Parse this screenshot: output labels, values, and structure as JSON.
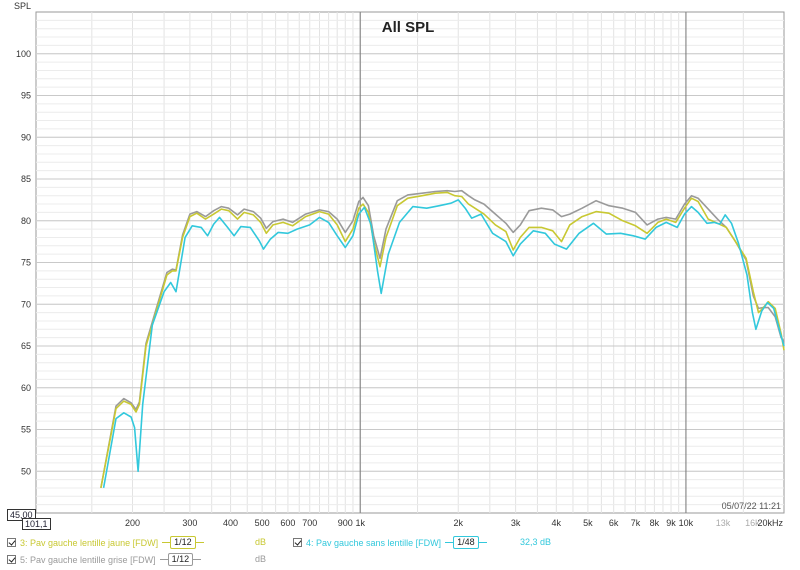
{
  "chart_data": {
    "type": "line",
    "title": "All SPL",
    "ylabel": "SPL",
    "x_unit": "Hz",
    "x_scale": "log",
    "xlim": [
      101.1,
      20000
    ],
    "ylim": [
      45,
      105
    ],
    "y_ticks": [
      50,
      55,
      60,
      65,
      70,
      75,
      80,
      85,
      90,
      95,
      100
    ],
    "x_tick_labels": [
      {
        "value": 200,
        "label": "200"
      },
      {
        "value": 300,
        "label": "300"
      },
      {
        "value": 400,
        "label": "400"
      },
      {
        "value": 500,
        "label": "500"
      },
      {
        "value": 600,
        "label": "600"
      },
      {
        "value": 700,
        "label": "700"
      },
      {
        "value": 900,
        "label": "900"
      },
      {
        "value": 1000,
        "label": "1k"
      },
      {
        "value": 2000,
        "label": "2k"
      },
      {
        "value": 3000,
        "label": "3k"
      },
      {
        "value": 4000,
        "label": "4k"
      },
      {
        "value": 5000,
        "label": "5k"
      },
      {
        "value": 6000,
        "label": "6k"
      },
      {
        "value": 7000,
        "label": "7k"
      },
      {
        "value": 8000,
        "label": "8k"
      },
      {
        "value": 9000,
        "label": "9k"
      },
      {
        "value": 10000,
        "label": "10k"
      },
      {
        "value": 13000,
        "label": "13k",
        "faded": true
      },
      {
        "value": 16000,
        "label": "16k",
        "faded": true
      },
      {
        "value": 20000,
        "label": "20kHz"
      }
    ],
    "corner_y_value": "45,00",
    "corner_x_value": "101,1",
    "timestamp": "05/07/22 11:21",
    "grid": true,
    "legend_position": "bottom",
    "series": [
      {
        "name": "3: Pav gauche lentille jaune [FDW]",
        "color": "#c8c832",
        "smoothing": "1/12",
        "offset": "",
        "unit": "dB",
        "points": [
          [
            160,
            48
          ],
          [
            178,
            57.5
          ],
          [
            188,
            58.4
          ],
          [
            198,
            58
          ],
          [
            205,
            57.1
          ],
          [
            210,
            58
          ],
          [
            220,
            65
          ],
          [
            240,
            70
          ],
          [
            255,
            73.5
          ],
          [
            265,
            74
          ],
          [
            272,
            74
          ],
          [
            285,
            78
          ],
          [
            300,
            80.5
          ],
          [
            315,
            80.9
          ],
          [
            335,
            80.2
          ],
          [
            355,
            80.8
          ],
          [
            375,
            81.4
          ],
          [
            395,
            81.2
          ],
          [
            420,
            80.2
          ],
          [
            440,
            81
          ],
          [
            470,
            80.7
          ],
          [
            495,
            79.8
          ],
          [
            515,
            78.5
          ],
          [
            540,
            79.5
          ],
          [
            580,
            79.8
          ],
          [
            620,
            79.4
          ],
          [
            680,
            80.5
          ],
          [
            750,
            81.1
          ],
          [
            800,
            80.8
          ],
          [
            850,
            79.5
          ],
          [
            900,
            77.5
          ],
          [
            950,
            79
          ],
          [
            990,
            81.5
          ],
          [
            1020,
            82
          ],
          [
            1060,
            81
          ],
          [
            1100,
            77.5
          ],
          [
            1150,
            74.5
          ],
          [
            1200,
            78
          ],
          [
            1300,
            81.8
          ],
          [
            1400,
            82.7
          ],
          [
            1550,
            83
          ],
          [
            1700,
            83.3
          ],
          [
            1850,
            83.4
          ],
          [
            1950,
            83
          ],
          [
            2050,
            82.9
          ],
          [
            2150,
            82
          ],
          [
            2250,
            81.5
          ],
          [
            2400,
            80.8
          ],
          [
            2600,
            79.5
          ],
          [
            2800,
            78.7
          ],
          [
            2950,
            76.5
          ],
          [
            3100,
            78
          ],
          [
            3300,
            79.2
          ],
          [
            3600,
            79.2
          ],
          [
            3900,
            78.8
          ],
          [
            4150,
            77.5
          ],
          [
            4400,
            79.5
          ],
          [
            4800,
            80.5
          ],
          [
            5300,
            81.1
          ],
          [
            5800,
            80.9
          ],
          [
            6400,
            80
          ],
          [
            7000,
            79.4
          ],
          [
            7600,
            78.5
          ],
          [
            8200,
            79.8
          ],
          [
            8700,
            80.2
          ],
          [
            9300,
            79.8
          ],
          [
            9900,
            81.5
          ],
          [
            10400,
            82.7
          ],
          [
            10900,
            82.3
          ],
          [
            11700,
            80.2
          ],
          [
            12500,
            79.7
          ],
          [
            13300,
            79.2
          ],
          [
            14200,
            77.5
          ],
          [
            15300,
            75.5
          ],
          [
            16100,
            71.5
          ],
          [
            16700,
            69
          ],
          [
            17200,
            69.5
          ],
          [
            17900,
            70.3
          ],
          [
            18800,
            69.5
          ],
          [
            19600,
            66.5
          ],
          [
            20000,
            64.5
          ]
        ]
      },
      {
        "name": "4: Pav gauche sans lentille [FDW]",
        "color": "#32c8dc",
        "smoothing": "1/48",
        "offset": "32,3 dB",
        "unit": "",
        "points": [
          [
            163,
            48
          ],
          [
            178,
            56.3
          ],
          [
            188,
            57
          ],
          [
            198,
            56.5
          ],
          [
            203,
            55.2
          ],
          [
            208,
            50
          ],
          [
            215,
            58
          ],
          [
            230,
            67.5
          ],
          [
            250,
            71.5
          ],
          [
            262,
            72.6
          ],
          [
            272,
            71.5
          ],
          [
            290,
            78
          ],
          [
            305,
            79.4
          ],
          [
            325,
            79.2
          ],
          [
            340,
            78.2
          ],
          [
            355,
            79.6
          ],
          [
            370,
            80.4
          ],
          [
            390,
            79.3
          ],
          [
            410,
            78.2
          ],
          [
            430,
            79.3
          ],
          [
            460,
            79.2
          ],
          [
            490,
            77.6
          ],
          [
            505,
            76.6
          ],
          [
            530,
            77.8
          ],
          [
            560,
            78.6
          ],
          [
            600,
            78.5
          ],
          [
            640,
            79
          ],
          [
            700,
            79.5
          ],
          [
            750,
            80.4
          ],
          [
            800,
            79.8
          ],
          [
            850,
            78.2
          ],
          [
            900,
            76.8
          ],
          [
            950,
            78.2
          ],
          [
            990,
            80.8
          ],
          [
            1030,
            81.6
          ],
          [
            1080,
            79.5
          ],
          [
            1130,
            74
          ],
          [
            1160,
            71.3
          ],
          [
            1220,
            76
          ],
          [
            1320,
            79.8
          ],
          [
            1450,
            81.7
          ],
          [
            1600,
            81.5
          ],
          [
            1750,
            81.8
          ],
          [
            1900,
            82.1
          ],
          [
            2000,
            82.5
          ],
          [
            2100,
            81.5
          ],
          [
            2200,
            80.3
          ],
          [
            2350,
            80.8
          ],
          [
            2550,
            78.5
          ],
          [
            2800,
            77.5
          ],
          [
            2950,
            75.8
          ],
          [
            3100,
            77.2
          ],
          [
            3400,
            78.8
          ],
          [
            3700,
            78.5
          ],
          [
            3950,
            77.2
          ],
          [
            4300,
            76.6
          ],
          [
            4700,
            78.5
          ],
          [
            5200,
            79.7
          ],
          [
            5700,
            78.4
          ],
          [
            6300,
            78.5
          ],
          [
            6900,
            78.2
          ],
          [
            7500,
            77.8
          ],
          [
            8100,
            79.2
          ],
          [
            8700,
            79.8
          ],
          [
            9400,
            79.2
          ],
          [
            9900,
            80.8
          ],
          [
            10400,
            81.7
          ],
          [
            10900,
            81
          ],
          [
            11600,
            79.7
          ],
          [
            12200,
            79.8
          ],
          [
            12700,
            79.6
          ],
          [
            13200,
            80.7
          ],
          [
            13800,
            79.7
          ],
          [
            14500,
            77.3
          ],
          [
            15400,
            73.5
          ],
          [
            16000,
            69
          ],
          [
            16400,
            67
          ],
          [
            17100,
            69.2
          ],
          [
            17800,
            70.2
          ],
          [
            18600,
            69.5
          ],
          [
            19500,
            66.5
          ],
          [
            20000,
            65
          ]
        ]
      },
      {
        "name": "5: Pav gauche lentille grise [FDW]",
        "color": "#9a9a9a",
        "smoothing": "1/12",
        "offset": "",
        "unit": "dB",
        "points": [
          [
            160,
            48
          ],
          [
            178,
            57.8
          ],
          [
            188,
            58.7
          ],
          [
            198,
            58.2
          ],
          [
            205,
            57.4
          ],
          [
            210,
            58.3
          ],
          [
            220,
            65.3
          ],
          [
            240,
            70.3
          ],
          [
            255,
            73.8
          ],
          [
            265,
            74.2
          ],
          [
            272,
            74.1
          ],
          [
            285,
            78.3
          ],
          [
            300,
            80.8
          ],
          [
            315,
            81.1
          ],
          [
            335,
            80.5
          ],
          [
            355,
            81.2
          ],
          [
            375,
            81.7
          ],
          [
            395,
            81.5
          ],
          [
            420,
            80.7
          ],
          [
            440,
            81.4
          ],
          [
            470,
            81.1
          ],
          [
            495,
            80.3
          ],
          [
            515,
            79.1
          ],
          [
            540,
            79.9
          ],
          [
            580,
            80.2
          ],
          [
            620,
            79.8
          ],
          [
            680,
            80.8
          ],
          [
            750,
            81.3
          ],
          [
            800,
            81.1
          ],
          [
            850,
            80.2
          ],
          [
            900,
            78.6
          ],
          [
            950,
            80
          ],
          [
            990,
            82.3
          ],
          [
            1020,
            82.8
          ],
          [
            1060,
            81.8
          ],
          [
            1100,
            78.2
          ],
          [
            1150,
            75.5
          ],
          [
            1200,
            79
          ],
          [
            1300,
            82.4
          ],
          [
            1400,
            83.1
          ],
          [
            1550,
            83.3
          ],
          [
            1700,
            83.5
          ],
          [
            1850,
            83.6
          ],
          [
            1950,
            83.5
          ],
          [
            2050,
            83.6
          ],
          [
            2150,
            83
          ],
          [
            2250,
            82.5
          ],
          [
            2400,
            82
          ],
          [
            2600,
            80.8
          ],
          [
            2800,
            79.7
          ],
          [
            2950,
            78.6
          ],
          [
            3100,
            79.5
          ],
          [
            3300,
            81.2
          ],
          [
            3600,
            81.5
          ],
          [
            3900,
            81.3
          ],
          [
            4150,
            80.5
          ],
          [
            4400,
            80.8
          ],
          [
            4800,
            81.5
          ],
          [
            5300,
            82.4
          ],
          [
            5800,
            81.8
          ],
          [
            6400,
            81.5
          ],
          [
            7000,
            81
          ],
          [
            7600,
            79.5
          ],
          [
            8200,
            80.2
          ],
          [
            8700,
            80.4
          ],
          [
            9300,
            80.2
          ],
          [
            9900,
            82
          ],
          [
            10400,
            83
          ],
          [
            10900,
            82.7
          ],
          [
            11700,
            81.4
          ],
          [
            12500,
            80.2
          ],
          [
            13300,
            79.2
          ],
          [
            14200,
            77.5
          ],
          [
            15300,
            75.3
          ],
          [
            16100,
            71
          ],
          [
            16700,
            69.5
          ],
          [
            17200,
            69.6
          ],
          [
            17900,
            69.6
          ],
          [
            18800,
            68.5
          ],
          [
            19600,
            66
          ],
          [
            20000,
            65.5
          ]
        ]
      }
    ]
  }
}
